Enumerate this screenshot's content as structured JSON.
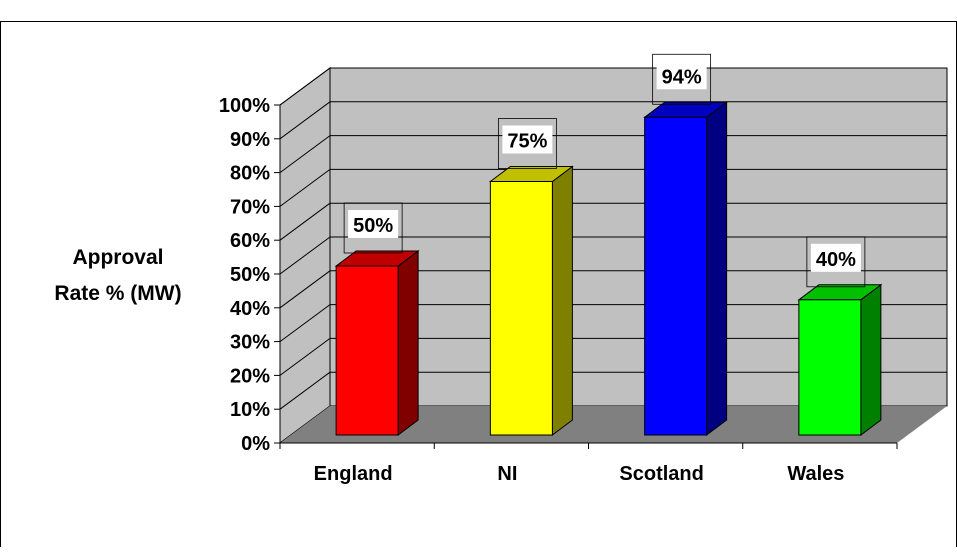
{
  "chart_data": {
    "type": "bar",
    "style": "3d-column",
    "categories": [
      "England",
      "NI",
      "Scotland",
      "Wales"
    ],
    "values": [
      50,
      75,
      94,
      40
    ],
    "data_labels": [
      "50%",
      "75%",
      "94%",
      "40%"
    ],
    "ylabel": "Approval Rate % (MW)",
    "ylabel_lines": [
      "Approval",
      "Rate % (MW)"
    ],
    "ylim": [
      0,
      100
    ],
    "yticks": [
      "0%",
      "10%",
      "20%",
      "30%",
      "40%",
      "50%",
      "60%",
      "70%",
      "80%",
      "90%",
      "100%"
    ],
    "grid": true,
    "legend": "none",
    "colors": {
      "bars": [
        {
          "front": "#ff0000",
          "side": "#800000",
          "top": "#c00000"
        },
        {
          "front": "#ffff00",
          "side": "#808000",
          "top": "#c0c000"
        },
        {
          "front": "#0000ff",
          "side": "#000080",
          "top": "#0000c0"
        },
        {
          "front": "#00ff00",
          "side": "#008000",
          "top": "#00c000"
        }
      ],
      "wall": "#c0c0c0",
      "side_wall": "#c0c0c0",
      "floor": "#808080",
      "gridline": "#000000"
    }
  }
}
